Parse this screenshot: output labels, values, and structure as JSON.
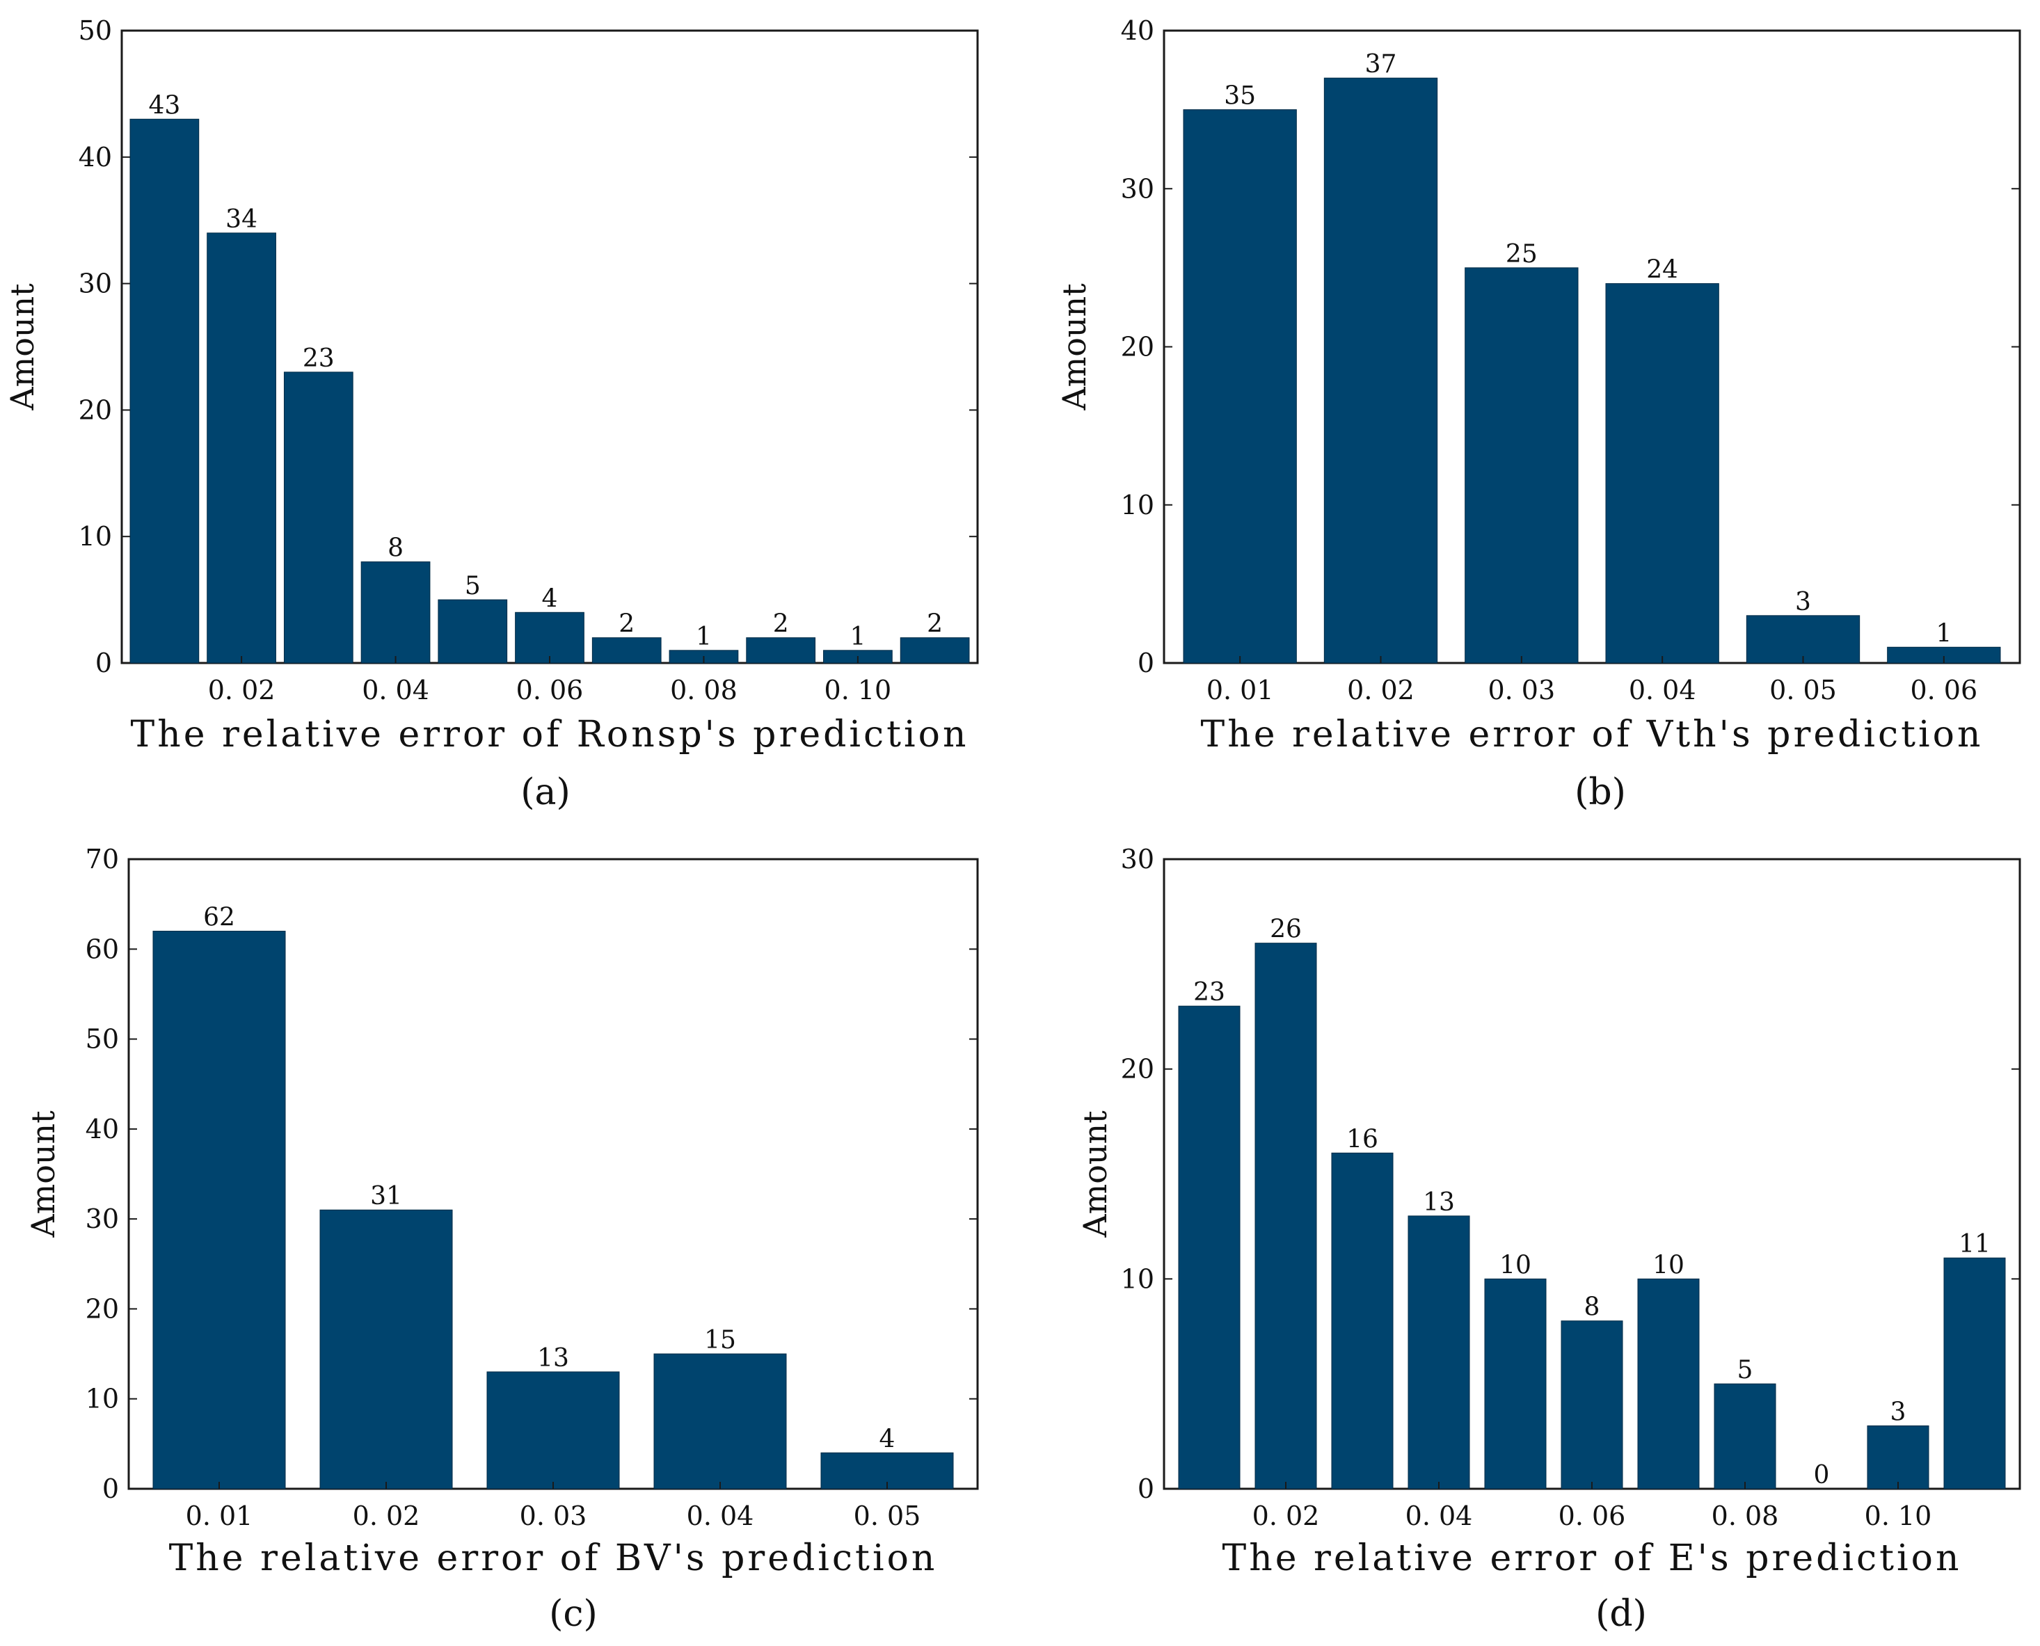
{
  "colors": {
    "bar": "#00446e",
    "frame": "#1a1a1a",
    "text": "#111111"
  },
  "chart_data": [
    {
      "type": "bar",
      "panel": "a",
      "caption": "(a)",
      "xlabel": "The relative error of Ronsp's prediction",
      "ylabel": "Amount",
      "ylim": [
        0,
        50
      ],
      "yticks": [
        0,
        10,
        20,
        30,
        40,
        50
      ],
      "categories": [
        "0.01",
        "0.02",
        "0.03",
        "0.04",
        "0.05",
        "0.06",
        "0.07",
        "0.08",
        "0.09",
        "0.10",
        "0.11"
      ],
      "tick_labels": [
        "",
        "0.02",
        "",
        "0.04",
        "",
        "0.06",
        "",
        "0.08",
        "",
        "0.10",
        ""
      ],
      "values": [
        43,
        34,
        23,
        8,
        5,
        4,
        2,
        1,
        2,
        1,
        2
      ]
    },
    {
      "type": "bar",
      "panel": "b",
      "caption": "(b)",
      "xlabel": "The relative error of Vth's prediction",
      "ylabel": "Amount",
      "ylim": [
        0,
        40
      ],
      "yticks": [
        0,
        10,
        20,
        30,
        40
      ],
      "categories": [
        "0.01",
        "0.02",
        "0.03",
        "0.04",
        "0.05",
        "0.06"
      ],
      "tick_labels": [
        "0.01",
        "0.02",
        "0.03",
        "0.04",
        "0.05",
        "0.06"
      ],
      "values": [
        35,
        37,
        25,
        24,
        3,
        1
      ]
    },
    {
      "type": "bar",
      "panel": "c",
      "caption": "(c)",
      "xlabel": "The relative error of BV's prediction",
      "ylabel": "Amount",
      "ylim": [
        0,
        70
      ],
      "yticks": [
        0,
        10,
        20,
        30,
        40,
        50,
        60,
        70
      ],
      "categories": [
        "0.01",
        "0.02",
        "0.03",
        "0.04",
        "0.05"
      ],
      "tick_labels": [
        "0.01",
        "0.02",
        "0.03",
        "0.04",
        "0.05"
      ],
      "values": [
        62,
        31,
        13,
        15,
        4
      ]
    },
    {
      "type": "bar",
      "panel": "d",
      "caption": "(d)",
      "xlabel": "The relative error of E's prediction",
      "ylabel": "Amount",
      "ylim": [
        0,
        30
      ],
      "yticks": [
        0,
        10,
        20,
        30
      ],
      "categories": [
        "0.01",
        "0.02",
        "0.03",
        "0.04",
        "0.05",
        "0.06",
        "0.07",
        "0.08",
        "0.09",
        "0.10",
        "0.11"
      ],
      "tick_labels": [
        "",
        "0.02",
        "",
        "0.04",
        "",
        "0.06",
        "",
        "0.08",
        "",
        "0.10",
        ""
      ],
      "values": [
        23,
        26,
        16,
        13,
        10,
        8,
        10,
        5,
        0,
        3,
        11
      ]
    }
  ]
}
